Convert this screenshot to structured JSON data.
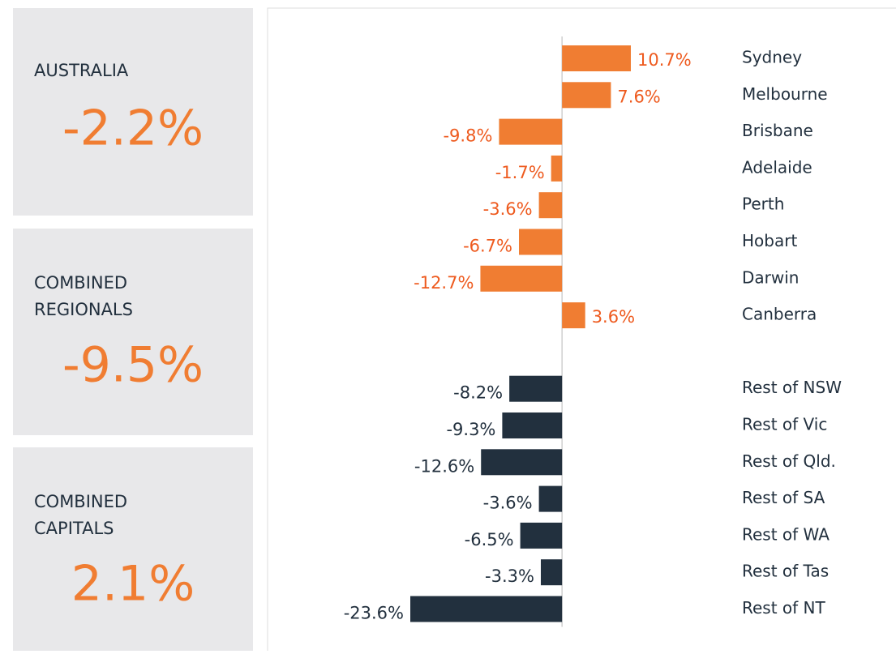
{
  "panels": [
    {
      "title_lines": [
        "AUSTRALIA"
      ],
      "value": "-2.2%"
    },
    {
      "title_lines": [
        "COMBINED",
        "REGIONALS"
      ],
      "value": "-9.5%"
    },
    {
      "title_lines": [
        "COMBINED",
        "CAPITALS"
      ],
      "value": "2.1%"
    }
  ],
  "chart_data": {
    "type": "bar",
    "orientation": "horizontal",
    "groups": [
      {
        "color": "#f07d32",
        "label_color": "#ee5a1e",
        "categories": [
          "Sydney",
          "Melbourne",
          "Brisbane",
          "Adelaide",
          "Perth",
          "Hobart",
          "Darwin",
          "Canberra"
        ],
        "values": [
          10.7,
          7.6,
          -9.8,
          -1.7,
          -3.6,
          -6.7,
          -12.7,
          3.6
        ],
        "value_labels": [
          "10.7%",
          "7.6%",
          "-9.8%",
          "-1.7%",
          "-3.6%",
          "-6.7%",
          "-12.7%",
          "3.6%"
        ]
      },
      {
        "color": "#22303e",
        "label_color": "#22303e",
        "categories": [
          "Rest of NSW",
          "Rest of Vic",
          "Rest of Qld.",
          "Rest of SA",
          "Rest of WA",
          "Rest of Tas",
          "Rest of NT"
        ],
        "values": [
          -8.2,
          -9.3,
          -12.6,
          -3.6,
          -6.5,
          -3.3,
          -23.6
        ],
        "value_labels": [
          "-8.2%",
          "-9.3%",
          "-12.6%",
          "-3.6%",
          "-6.5%",
          "-3.3%",
          "-23.6%"
        ]
      }
    ]
  }
}
